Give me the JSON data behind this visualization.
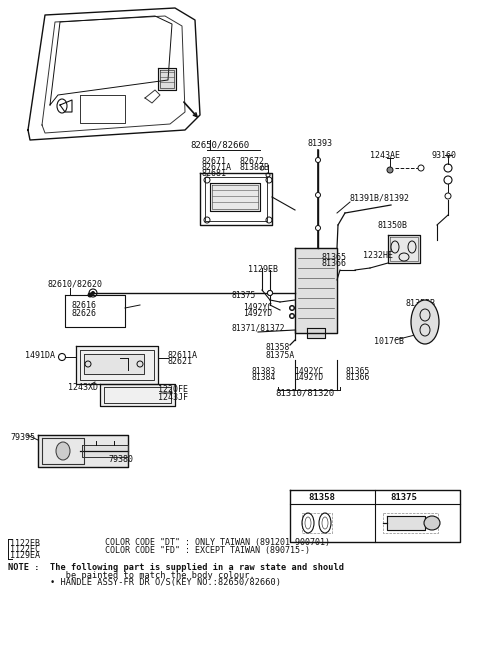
{
  "bg_color": "#ffffff",
  "fig_width": 4.8,
  "fig_height": 6.55,
  "dpi": 100,
  "note_lines": [
    "NOTE :  The following part is supplied in a raw state and should",
    "           be painted to match the body colour.",
    "        • HANDLE ASSY-FR DR O/S(KEY NO.:82650/82660)"
  ],
  "color_code_lines": [
    "COLOR CODE \"DT\" : ONLY TAIWAN (891201-900701)",
    "COLOR CODE \"FD\" : EXCEPT TAIWAN (890715-)"
  ]
}
